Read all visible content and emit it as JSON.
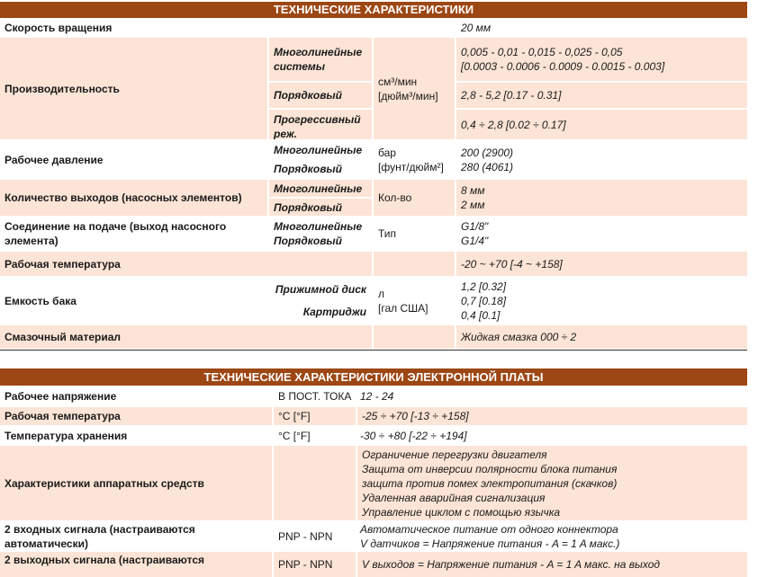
{
  "spec": {
    "title": "ТЕХНИЧЕСКИЕ ХАРАКТЕРИСТИКИ",
    "rows": [
      {
        "label": "Скорость вращения",
        "value": [
          "20 мм"
        ]
      },
      {
        "label": "Производительность",
        "sub": [
          "Многолинейные системы",
          "Порядковый",
          "Прогрессивный реж."
        ],
        "unit": [
          "см³/мин",
          "[дюйм³/мин]"
        ],
        "value": [
          "0,005 - 0,01 - 0,015 - 0,025 - 0,05",
          "[0.0003 - 0.0006 - 0.0009 - 0.0015 - 0.003]",
          "2,8 - 5,2 [0.17 - 0.31]",
          "0,4 ÷ 2,8 [0.02 ÷ 0.17]"
        ]
      },
      {
        "label": "Рабочее давление",
        "sub": [
          "Многолинейные",
          "Порядковый"
        ],
        "unit": [
          "бар",
          "[фунт/дюйм²]"
        ],
        "value": [
          "200 (2900)",
          "280 (4061)"
        ]
      },
      {
        "label": "Количество выходов (насосных элементов)",
        "sub": [
          "Многолинейные",
          "Порядковый"
        ],
        "unit": [
          "Кол-во"
        ],
        "value": [
          "8 мм",
          "2 мм"
        ]
      },
      {
        "label": "Соединение на подаче (выход насосного элемента)",
        "sub": [
          "Многолинейные",
          "Порядковый"
        ],
        "unit": [
          "Тип"
        ],
        "value": [
          "G1/8\"",
          "G1/4\""
        ]
      },
      {
        "label": "Рабочая температура",
        "value": [
          "-20 ~ +70 [-4 ~ +158]"
        ]
      },
      {
        "label": "Емкость бака",
        "sub": [
          "Прижимной диск",
          "Картриджи"
        ],
        "unit": [
          "л",
          "[гал США]"
        ],
        "value": [
          "1,2 [0.32]",
          "0,7 [0.18]",
          "0,4 [0.1]"
        ]
      },
      {
        "label": "Смазочный материал",
        "value": [
          "Жидкая смазка 000 ÷ 2"
        ]
      }
    ]
  },
  "board": {
    "title": "ТЕХНИЧЕСКИЕ ХАРАКТЕРИСТИКИ ЭЛЕКТРОННОЙ ПЛАТЫ",
    "rows": [
      {
        "label": "Рабочее напряжение",
        "unit": "В ПОСТ. ТОКА",
        "value": [
          "12 - 24"
        ]
      },
      {
        "label": "Рабочая температура",
        "unit": "°C [°F]",
        "value": [
          "-25 ÷ +70 [-13 ÷ +158]"
        ]
      },
      {
        "label": "Температура хранения",
        "unit": "°C [°F]",
        "value": [
          "-30 ÷ +80 [-22 ÷ +194]"
        ]
      },
      {
        "label": "Характеристики аппаратных средств",
        "value": [
          "Ограничение перегрузки двигателя",
          "Защита от инверсии полярности блока питания",
          "защита против помех электропитания (скачков)",
          "Удаленная аварийная сигнализация",
          "Управление циклом с помощью язычка"
        ]
      },
      {
        "label": "2 входных сигнала (настраиваются автоматически)",
        "unit": "PNP - NPN",
        "value": [
          "Автоматическое питание от одного коннектора",
          "V датчиков = Напряжение питания - A = 1 A макс.)"
        ]
      },
      {
        "label": "2 выходных сигнала (настраиваются",
        "unit": "PNP - NPN",
        "value": [
          "V выходов = Напряжение питания - A = 1 A макс. на выход"
        ]
      }
    ]
  }
}
